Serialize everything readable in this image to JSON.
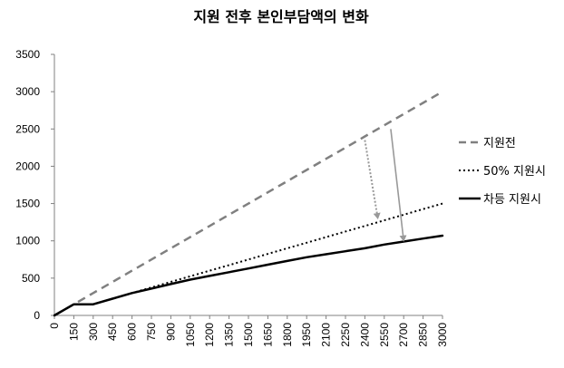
{
  "chart_data": {
    "type": "line",
    "title": "지원 전후 본인부담액의 변화",
    "xlabel": "",
    "ylabel": "",
    "x": [
      0,
      150,
      300,
      450,
      600,
      750,
      900,
      1050,
      1200,
      1350,
      1500,
      1650,
      1800,
      1950,
      2100,
      2250,
      2400,
      2550,
      2700,
      2850,
      3000
    ],
    "x_tick_labels": [
      "0",
      "150",
      "300",
      "450",
      "600",
      "750",
      "900",
      "1050",
      "1200",
      "1350",
      "1500",
      "1650",
      "1800",
      "1950",
      "2100",
      "2250",
      "2400",
      "2550",
      "2700",
      "2850",
      "3000"
    ],
    "ylim": [
      0,
      3500
    ],
    "y_ticks": [
      0,
      500,
      1000,
      1500,
      2000,
      2500,
      3000,
      3500
    ],
    "grid": false,
    "legend_position": "right",
    "series": [
      {
        "name": "지원전",
        "style": "dashed",
        "color": "#808080",
        "values": [
          0,
          150,
          300,
          450,
          600,
          750,
          900,
          1050,
          1200,
          1350,
          1500,
          1650,
          1800,
          1950,
          2100,
          2250,
          2400,
          2550,
          2700,
          2850,
          3000
        ]
      },
      {
        "name": "50% 지원시",
        "style": "dotted",
        "color": "#000000",
        "values": [
          0,
          150,
          150,
          225,
          300,
          375,
          450,
          525,
          600,
          675,
          750,
          825,
          900,
          975,
          1050,
          1125,
          1200,
          1275,
          1350,
          1425,
          1500
        ]
      },
      {
        "name": "차등 지원시",
        "style": "solid",
        "color": "#000000",
        "values": [
          0,
          150,
          150,
          225,
          300,
          360,
          420,
          480,
          530,
          580,
          630,
          680,
          730,
          780,
          820,
          860,
          900,
          950,
          990,
          1030,
          1070
        ]
      }
    ],
    "annotations": [
      {
        "type": "arrow",
        "style": "dotted",
        "color": "#999999",
        "from": [
          2400,
          2350
        ],
        "to": [
          2500,
          1300
        ]
      },
      {
        "type": "arrow",
        "style": "solid",
        "color": "#999999",
        "from": [
          2600,
          2500
        ],
        "to": [
          2700,
          1000
        ]
      }
    ]
  }
}
